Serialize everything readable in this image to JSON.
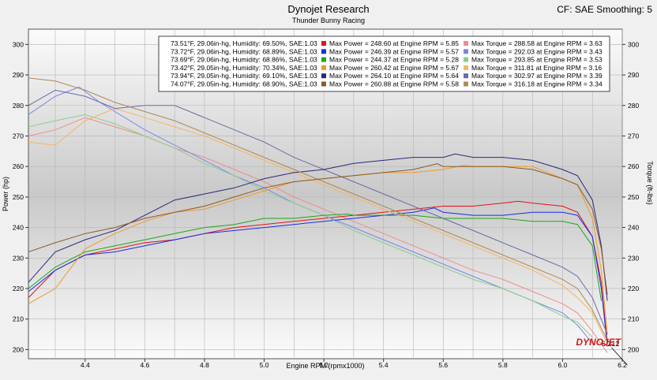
{
  "header": {
    "title": "Dynojet Research",
    "subtitle": "Thunder Bunny Racing",
    "correction": "CF: SAE Smoothing: 5"
  },
  "brand": {
    "logo_text": "DYNOJET"
  },
  "annotation": {
    "label": "6.212",
    "x": 6.212,
    "y": 198
  },
  "chart_data": {
    "type": "line",
    "xlabel": "Engine RPM (rpmx1000)",
    "ylabel": "Power (hp)",
    "y2label": "Torque (ft-lbs)",
    "xlim": [
      4.21,
      6.2
    ],
    "ylim": [
      197,
      305
    ],
    "y2lim": [
      197,
      305
    ],
    "x_ticks": [
      4.4,
      4.6,
      4.8,
      5.0,
      5.2,
      5.4,
      5.6,
      5.8,
      6.0,
      6.2
    ],
    "x_tick_labels": [
      "4.4",
      "4.6",
      "4.8",
      "5.0",
      "5.2",
      "5.4",
      "5.6",
      "5.8",
      "6.0",
      "6.2"
    ],
    "y_ticks": [
      200,
      210,
      220,
      230,
      240,
      250,
      260,
      270,
      280,
      290,
      300
    ],
    "y_tick_labels": [
      "200",
      "210",
      "220",
      "230",
      "240",
      "250",
      "260",
      "270",
      "280",
      "290",
      "300"
    ],
    "grid": true,
    "legend_placement": "top-right",
    "runs": [
      {
        "conditions": "73.51°F, 29.06in-hg, Humidity: 69.50%, SAE:1.03",
        "power_label": "Max Power = 248.60 at Engine RPM = 5.85",
        "torque_label": "Max Torque = 288.58 at Engine RPM = 3.63",
        "power_color": "#e8101a",
        "torque_color": "#f08c8c",
        "power": [
          [
            4.21,
            217
          ],
          [
            4.3,
            226
          ],
          [
            4.4,
            231
          ],
          [
            4.5,
            233
          ],
          [
            4.6,
            235
          ],
          [
            4.7,
            236
          ],
          [
            4.8,
            238
          ],
          [
            4.9,
            240
          ],
          [
            5.0,
            241
          ],
          [
            5.1,
            242
          ],
          [
            5.2,
            243
          ],
          [
            5.3,
            244
          ],
          [
            5.4,
            245
          ],
          [
            5.5,
            246
          ],
          [
            5.6,
            247
          ],
          [
            5.7,
            247
          ],
          [
            5.8,
            248
          ],
          [
            5.85,
            248.6
          ],
          [
            5.9,
            248
          ],
          [
            6.0,
            247
          ],
          [
            6.05,
            245
          ],
          [
            6.1,
            237
          ],
          [
            6.13,
            222
          ],
          [
            6.15,
            202
          ]
        ],
        "torque": [
          [
            4.21,
            270
          ],
          [
            4.3,
            272
          ],
          [
            4.4,
            276
          ],
          [
            4.5,
            273
          ],
          [
            4.6,
            270
          ],
          [
            4.7,
            266
          ],
          [
            4.8,
            263
          ],
          [
            4.9,
            259
          ],
          [
            5.0,
            255
          ],
          [
            5.1,
            250
          ],
          [
            5.2,
            246
          ],
          [
            5.3,
            242
          ],
          [
            5.4,
            238
          ],
          [
            5.5,
            234
          ],
          [
            5.6,
            230
          ],
          [
            5.7,
            226
          ],
          [
            5.8,
            223
          ],
          [
            5.9,
            219
          ],
          [
            6.0,
            215
          ],
          [
            6.05,
            212
          ],
          [
            6.1,
            206
          ],
          [
            6.15,
            199
          ]
        ]
      },
      {
        "conditions": "73.72°F, 29.06in-hg, Humidity: 68.89%, SAE:1.03",
        "power_label": "Max Power = 246.39 at Engine RPM = 5.57",
        "torque_label": "Max Torque = 292.03 at Engine RPM = 3.43",
        "power_color": "#1a2ee0",
        "torque_color": "#7c86e8",
        "power": [
          [
            4.21,
            219
          ],
          [
            4.3,
            226
          ],
          [
            4.4,
            231
          ],
          [
            4.5,
            232
          ],
          [
            4.6,
            234
          ],
          [
            4.7,
            236
          ],
          [
            4.8,
            238
          ],
          [
            4.9,
            239
          ],
          [
            5.0,
            240
          ],
          [
            5.1,
            241
          ],
          [
            5.2,
            242
          ],
          [
            5.3,
            243
          ],
          [
            5.4,
            244
          ],
          [
            5.5,
            245
          ],
          [
            5.57,
            246.4
          ],
          [
            5.6,
            245
          ],
          [
            5.7,
            244
          ],
          [
            5.8,
            244
          ],
          [
            5.9,
            245
          ],
          [
            6.0,
            245
          ],
          [
            6.05,
            244
          ],
          [
            6.1,
            237
          ],
          [
            6.13,
            220
          ],
          [
            6.15,
            201
          ]
        ],
        "torque": [
          [
            4.21,
            277
          ],
          [
            4.3,
            283
          ],
          [
            4.38,
            286
          ],
          [
            4.45,
            281
          ],
          [
            4.5,
            278
          ],
          [
            4.6,
            272
          ],
          [
            4.7,
            267
          ],
          [
            4.8,
            262
          ],
          [
            4.9,
            257
          ],
          [
            5.0,
            253
          ],
          [
            5.1,
            248
          ],
          [
            5.2,
            244
          ],
          [
            5.3,
            240
          ],
          [
            5.4,
            236
          ],
          [
            5.5,
            232
          ],
          [
            5.6,
            228
          ],
          [
            5.7,
            224
          ],
          [
            5.8,
            220
          ],
          [
            5.9,
            216
          ],
          [
            6.0,
            212
          ],
          [
            6.05,
            208
          ],
          [
            6.1,
            202
          ]
        ]
      },
      {
        "conditions": "73.69°F, 29.06in-hg, Humidity: 68.86%, SAE:1.03",
        "power_label": "Max Power = 244.37 at Engine RPM = 5.28",
        "torque_label": "Max Torque = 293.85 at Engine RPM = 3.53",
        "power_color": "#1aa81a",
        "torque_color": "#8ad08a",
        "power": [
          [
            4.21,
            220
          ],
          [
            4.3,
            227
          ],
          [
            4.4,
            232
          ],
          [
            4.5,
            234
          ],
          [
            4.6,
            236
          ],
          [
            4.7,
            238
          ],
          [
            4.8,
            240
          ],
          [
            4.9,
            241
          ],
          [
            5.0,
            243
          ],
          [
            5.1,
            243
          ],
          [
            5.2,
            244
          ],
          [
            5.28,
            244.4
          ],
          [
            5.3,
            244
          ],
          [
            5.4,
            244
          ],
          [
            5.5,
            244
          ],
          [
            5.6,
            243
          ],
          [
            5.7,
            243
          ],
          [
            5.8,
            243
          ],
          [
            5.9,
            242
          ],
          [
            6.0,
            242
          ],
          [
            6.05,
            241
          ],
          [
            6.1,
            234
          ],
          [
            6.13,
            216
          ]
        ],
        "torque": [
          [
            4.21,
            273
          ],
          [
            4.3,
            275
          ],
          [
            4.4,
            277
          ],
          [
            4.5,
            274
          ],
          [
            4.6,
            270
          ],
          [
            4.7,
            266
          ],
          [
            4.8,
            261
          ],
          [
            4.9,
            257
          ],
          [
            5.0,
            252
          ],
          [
            5.1,
            248
          ],
          [
            5.2,
            244
          ],
          [
            5.3,
            239
          ],
          [
            5.4,
            235
          ],
          [
            5.5,
            231
          ],
          [
            5.6,
            227
          ],
          [
            5.7,
            223
          ],
          [
            5.8,
            220
          ],
          [
            5.9,
            216
          ],
          [
            6.0,
            211
          ],
          [
            6.05,
            209
          ],
          [
            6.1,
            204
          ]
        ]
      },
      {
        "conditions": "73.42°F, 29.05in-hg, Humidity: 70.34%, SAE:1.03",
        "power_label": "Max Power = 260.42 at Engine RPM = 5.67",
        "torque_label": "Max Torque = 311.81 at Engine RPM = 3.16",
        "power_color": "#f09a28",
        "torque_color": "#f5b660",
        "power": [
          [
            4.21,
            215
          ],
          [
            4.3,
            220
          ],
          [
            4.4,
            233
          ],
          [
            4.5,
            238
          ],
          [
            4.6,
            242
          ],
          [
            4.7,
            245
          ],
          [
            4.8,
            246
          ],
          [
            4.9,
            249
          ],
          [
            5.0,
            252
          ],
          [
            5.1,
            255
          ],
          [
            5.2,
            256
          ],
          [
            5.3,
            257
          ],
          [
            5.4,
            258
          ],
          [
            5.5,
            258
          ],
          [
            5.6,
            259
          ],
          [
            5.67,
            260.4
          ],
          [
            5.7,
            260
          ],
          [
            5.8,
            260
          ],
          [
            5.9,
            260
          ],
          [
            6.0,
            256
          ],
          [
            6.05,
            254
          ],
          [
            6.1,
            243
          ],
          [
            6.13,
            226
          ],
          [
            6.15,
            205
          ]
        ],
        "torque": [
          [
            4.21,
            268
          ],
          [
            4.3,
            267
          ],
          [
            4.4,
            275
          ],
          [
            4.5,
            279
          ],
          [
            4.6,
            276
          ],
          [
            4.7,
            273
          ],
          [
            4.8,
            270
          ],
          [
            4.9,
            266
          ],
          [
            5.0,
            262
          ],
          [
            5.1,
            258
          ],
          [
            5.2,
            254
          ],
          [
            5.3,
            250
          ],
          [
            5.4,
            246
          ],
          [
            5.5,
            242
          ],
          [
            5.6,
            238
          ],
          [
            5.7,
            234
          ],
          [
            5.8,
            230
          ],
          [
            5.9,
            226
          ],
          [
            6.0,
            221
          ],
          [
            6.05,
            217
          ],
          [
            6.1,
            212
          ],
          [
            6.15,
            202
          ]
        ]
      },
      {
        "conditions": "73.94°F, 29.05in-hg, Humidity: 69.10%, SAE:1.03",
        "power_label": "Max Power = 264.10 at Engine RPM = 5.64",
        "torque_label": "Max Torque = 302.97 at Engine RPM = 3.39",
        "power_color": "#2a2878",
        "torque_color": "#6a6aa8",
        "power": [
          [
            4.21,
            222
          ],
          [
            4.3,
            232
          ],
          [
            4.4,
            236
          ],
          [
            4.5,
            239
          ],
          [
            4.6,
            244
          ],
          [
            4.7,
            249
          ],
          [
            4.8,
            251
          ],
          [
            4.9,
            253
          ],
          [
            5.0,
            256
          ],
          [
            5.1,
            258
          ],
          [
            5.2,
            259
          ],
          [
            5.3,
            261
          ],
          [
            5.4,
            262
          ],
          [
            5.5,
            263
          ],
          [
            5.6,
            263
          ],
          [
            5.64,
            264.1
          ],
          [
            5.7,
            263
          ],
          [
            5.8,
            263
          ],
          [
            5.9,
            262
          ],
          [
            6.0,
            259
          ],
          [
            6.05,
            257
          ],
          [
            6.1,
            249
          ],
          [
            6.13,
            234
          ],
          [
            6.15,
            216
          ]
        ],
        "torque": [
          [
            4.21,
            280
          ],
          [
            4.3,
            285
          ],
          [
            4.4,
            283
          ],
          [
            4.5,
            279
          ],
          [
            4.6,
            280
          ],
          [
            4.7,
            280
          ],
          [
            4.8,
            276
          ],
          [
            4.9,
            272
          ],
          [
            5.0,
            268
          ],
          [
            5.1,
            263
          ],
          [
            5.2,
            259
          ],
          [
            5.3,
            255
          ],
          [
            5.4,
            251
          ],
          [
            5.5,
            247
          ],
          [
            5.6,
            243
          ],
          [
            5.7,
            239
          ],
          [
            5.8,
            235
          ],
          [
            5.9,
            231
          ],
          [
            6.0,
            227
          ],
          [
            6.05,
            224
          ],
          [
            6.1,
            217
          ],
          [
            6.15,
            205
          ]
        ]
      },
      {
        "conditions": "74.07°F, 29.05in-hg, Humidity: 68.90%, SAE:1.03",
        "power_label": "Max Power = 260.88 at Engine RPM = 5.58",
        "torque_label": "Max Torque = 316.18 at Engine RPM = 3.34",
        "power_color": "#8c5a28",
        "torque_color": "#b08858",
        "power": [
          [
            4.21,
            232
          ],
          [
            4.3,
            235
          ],
          [
            4.4,
            238
          ],
          [
            4.5,
            240
          ],
          [
            4.6,
            243
          ],
          [
            4.7,
            245
          ],
          [
            4.8,
            247
          ],
          [
            4.9,
            250
          ],
          [
            5.0,
            253
          ],
          [
            5.1,
            255
          ],
          [
            5.2,
            256
          ],
          [
            5.3,
            257
          ],
          [
            5.4,
            258
          ],
          [
            5.5,
            259
          ],
          [
            5.58,
            260.9
          ],
          [
            5.6,
            260
          ],
          [
            5.7,
            260
          ],
          [
            5.8,
            260
          ],
          [
            5.9,
            259
          ],
          [
            6.0,
            256
          ],
          [
            6.05,
            254
          ],
          [
            6.1,
            246
          ],
          [
            6.13,
            233
          ],
          [
            6.15,
            218
          ]
        ],
        "torque": [
          [
            4.21,
            289
          ],
          [
            4.3,
            288
          ],
          [
            4.4,
            285
          ],
          [
            4.5,
            281
          ],
          [
            4.6,
            278
          ],
          [
            4.7,
            275
          ],
          [
            4.8,
            271
          ],
          [
            4.9,
            267
          ],
          [
            5.0,
            263
          ],
          [
            5.1,
            259
          ],
          [
            5.2,
            255
          ],
          [
            5.3,
            251
          ],
          [
            5.4,
            247
          ],
          [
            5.5,
            243
          ],
          [
            5.6,
            239
          ],
          [
            5.7,
            235
          ],
          [
            5.8,
            231
          ],
          [
            5.9,
            227
          ],
          [
            6.0,
            223
          ],
          [
            6.05,
            220
          ],
          [
            6.1,
            213
          ],
          [
            6.15,
            203
          ]
        ]
      }
    ]
  }
}
